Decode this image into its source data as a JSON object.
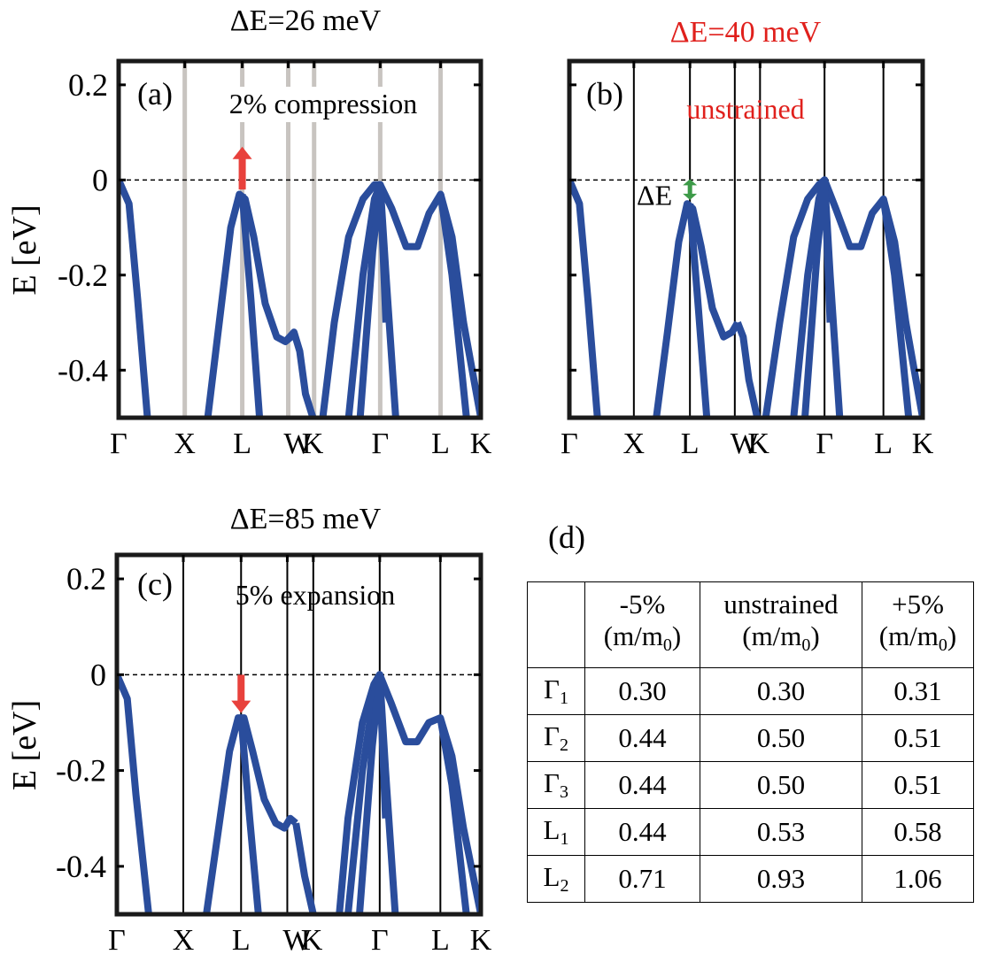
{
  "chart_data": [
    {
      "type": "line",
      "panel": "(a)",
      "title": "ΔE=26 meV",
      "title_color": "#000000",
      "annotation": "2% compression",
      "annotation_color": "#000000",
      "ylabel": "E [eV]",
      "ylim": [
        -0.5,
        0.25
      ],
      "yticks": [
        0.2,
        0,
        -0.2,
        -0.4
      ],
      "yticklabels": [
        "0.2",
        "0",
        "-0.2",
        "-0.4"
      ],
      "show_ytick_labels": true,
      "xlim": [
        0,
        6.3
      ],
      "high_symmetry_points": [
        {
          "label": "Γ",
          "x": 0
        },
        {
          "label": "X",
          "x": 1.15
        },
        {
          "label": "L",
          "x": 2.15
        },
        {
          "label": "W",
          "x": 2.95
        },
        {
          "label": "K",
          "x": 3.4
        },
        {
          "label": "Γ",
          "x": 4.55
        },
        {
          "label": "L",
          "x": 5.6
        },
        {
          "label": "K",
          "x": 6.3
        }
      ],
      "symmetry_line_color": "#c8c4c0",
      "arrow": {
        "direction": "up",
        "x": 2.15,
        "from": -0.02,
        "to": 0.07,
        "color": "#e8413c"
      },
      "series": [
        {
          "name": "band 1",
          "x": [
            0,
            0.18,
            0.33,
            0.5
          ],
          "y": [
            0,
            -0.05,
            -0.25,
            -0.5
          ]
        },
        {
          "name": "band 2",
          "x": [
            1.55,
            1.75,
            1.95,
            2.1,
            2.2,
            2.35,
            2.55,
            2.75,
            2.9,
            3.0
          ],
          "y": [
            -0.5,
            -0.3,
            -0.1,
            -0.03,
            -0.04,
            -0.12,
            -0.26,
            -0.33,
            -0.34,
            -0.33
          ]
        },
        {
          "name": "band 3",
          "x": [
            2.9,
            3.05,
            3.15,
            3.25,
            3.38
          ],
          "y": [
            -0.34,
            -0.32,
            -0.36,
            -0.45,
            -0.5
          ]
        },
        {
          "name": "band 4",
          "x": [
            2.15,
            2.3,
            2.45
          ],
          "y": [
            -0.03,
            -0.25,
            -0.5
          ]
        },
        {
          "name": "band 5",
          "x": [
            3.55,
            3.75,
            4.0,
            4.25,
            4.45,
            4.55,
            4.75,
            5.0,
            5.2,
            5.4,
            5.6,
            5.8,
            6.0,
            6.3
          ],
          "y": [
            -0.5,
            -0.3,
            -0.12,
            -0.04,
            -0.01,
            -0.01,
            -0.06,
            -0.14,
            -0.14,
            -0.07,
            -0.03,
            -0.12,
            -0.3,
            -0.5
          ]
        },
        {
          "name": "band 6",
          "x": [
            4.0,
            4.25,
            4.45,
            4.55,
            4.65,
            4.82
          ],
          "y": [
            -0.5,
            -0.2,
            -0.04,
            -0.01,
            -0.2,
            -0.5
          ]
        },
        {
          "name": "band 7",
          "x": [
            4.2,
            4.42,
            4.55,
            4.65
          ],
          "y": [
            -0.5,
            -0.15,
            -0.01,
            -0.3
          ]
        },
        {
          "name": "band 8",
          "x": [
            5.6,
            5.8,
            6.05
          ],
          "y": [
            -0.03,
            -0.2,
            -0.5
          ]
        }
      ]
    },
    {
      "type": "line",
      "panel": "(b)",
      "title": "ΔE=40 meV",
      "title_color": "#e0201c",
      "annotation": "unstrained",
      "annotation_color": "#e0201c",
      "ylabel": "",
      "ylim": [
        -0.5,
        0.25
      ],
      "yticks": [
        0.2,
        0,
        -0.2,
        -0.4
      ],
      "yticklabels": [
        "0.2",
        "0",
        "-0.2",
        "-0.4"
      ],
      "show_ytick_labels": false,
      "xlim": [
        0,
        6.3
      ],
      "high_symmetry_points": [
        {
          "label": "Γ",
          "x": 0
        },
        {
          "label": "X",
          "x": 1.15
        },
        {
          "label": "L",
          "x": 2.15
        },
        {
          "label": "W",
          "x": 2.95
        },
        {
          "label": "K",
          "x": 3.4
        },
        {
          "label": "Γ",
          "x": 4.55
        },
        {
          "label": "L",
          "x": 5.6
        },
        {
          "label": "K",
          "x": 6.3
        }
      ],
      "symmetry_line_color": "#000000",
      "arrow": {
        "direction": "double",
        "x": 2.15,
        "from": -0.04,
        "to": 0.0,
        "color": "#3d9a48",
        "label": "ΔE"
      },
      "series": [
        {
          "name": "band 1",
          "x": [
            0,
            0.18,
            0.33,
            0.5
          ],
          "y": [
            0,
            -0.05,
            -0.25,
            -0.5
          ]
        },
        {
          "name": "band 2",
          "x": [
            1.55,
            1.75,
            1.95,
            2.1,
            2.2,
            2.35,
            2.55,
            2.75,
            2.9,
            3.0
          ],
          "y": [
            -0.5,
            -0.32,
            -0.13,
            -0.05,
            -0.06,
            -0.14,
            -0.27,
            -0.33,
            -0.32,
            -0.3
          ]
        },
        {
          "name": "band 3",
          "x": [
            3.0,
            3.1,
            3.2,
            3.35
          ],
          "y": [
            -0.3,
            -0.33,
            -0.42,
            -0.5
          ]
        },
        {
          "name": "band 4",
          "x": [
            2.15,
            2.3,
            2.45
          ],
          "y": [
            -0.05,
            -0.27,
            -0.5
          ]
        },
        {
          "name": "band 5",
          "x": [
            3.5,
            3.75,
            4.0,
            4.25,
            4.45,
            4.55,
            4.75,
            5.0,
            5.2,
            5.4,
            5.6,
            5.8,
            6.0,
            6.3
          ],
          "y": [
            -0.5,
            -0.3,
            -0.12,
            -0.04,
            -0.01,
            0.0,
            -0.06,
            -0.14,
            -0.14,
            -0.07,
            -0.04,
            -0.13,
            -0.3,
            -0.5
          ]
        },
        {
          "name": "band 6",
          "x": [
            4.0,
            4.25,
            4.45,
            4.55,
            4.65,
            4.82
          ],
          "y": [
            -0.5,
            -0.2,
            -0.04,
            0.0,
            -0.2,
            -0.5
          ]
        },
        {
          "name": "band 7",
          "x": [
            4.2,
            4.42,
            4.55,
            4.65
          ],
          "y": [
            -0.5,
            -0.15,
            0.0,
            -0.3
          ]
        },
        {
          "name": "band 8",
          "x": [
            5.6,
            5.8,
            6.05
          ],
          "y": [
            -0.04,
            -0.2,
            -0.5
          ]
        }
      ]
    },
    {
      "type": "line",
      "panel": "(c)",
      "title": "ΔE=85 meV",
      "title_color": "#000000",
      "annotation": "5% expansion",
      "annotation_color": "#000000",
      "ylabel": "E [eV]",
      "ylim": [
        -0.5,
        0.25
      ],
      "yticks": [
        0.2,
        0,
        -0.2,
        -0.4
      ],
      "yticklabels": [
        "0.2",
        "0",
        "-0.2",
        "-0.4"
      ],
      "show_ytick_labels": true,
      "xlim": [
        0,
        6.3
      ],
      "high_symmetry_points": [
        {
          "label": "Γ",
          "x": 0
        },
        {
          "label": "X",
          "x": 1.15
        },
        {
          "label": "L",
          "x": 2.15
        },
        {
          "label": "W",
          "x": 2.95
        },
        {
          "label": "K",
          "x": 3.4
        },
        {
          "label": "Γ",
          "x": 4.55
        },
        {
          "label": "L",
          "x": 5.6
        },
        {
          "label": "K",
          "x": 6.3
        }
      ],
      "symmetry_line_color": "#000000",
      "arrow": {
        "direction": "down",
        "x": 2.15,
        "from": 0.0,
        "to": -0.08,
        "color": "#e8413c"
      },
      "series": [
        {
          "name": "band 1",
          "x": [
            0,
            0.18,
            0.33,
            0.55
          ],
          "y": [
            0,
            -0.05,
            -0.25,
            -0.5
          ]
        },
        {
          "name": "band 2",
          "x": [
            1.55,
            1.75,
            1.95,
            2.1,
            2.2,
            2.35,
            2.55,
            2.75,
            2.9,
            3.0,
            3.1
          ],
          "y": [
            -0.5,
            -0.33,
            -0.16,
            -0.09,
            -0.09,
            -0.16,
            -0.26,
            -0.31,
            -0.32,
            -0.3,
            -0.31
          ]
        },
        {
          "name": "band 3",
          "x": [
            3.1,
            3.25,
            3.4
          ],
          "y": [
            -0.31,
            -0.42,
            -0.5
          ]
        },
        {
          "name": "band 4",
          "x": [
            2.15,
            2.3,
            2.45
          ],
          "y": [
            -0.09,
            -0.3,
            -0.5
          ]
        },
        {
          "name": "band 5",
          "x": [
            3.85,
            4.0,
            4.25,
            4.45,
            4.55,
            4.75,
            5.0,
            5.2,
            5.4,
            5.6,
            5.8,
            6.0,
            6.3
          ],
          "y": [
            -0.5,
            -0.3,
            -0.1,
            -0.02,
            0.0,
            -0.06,
            -0.14,
            -0.14,
            -0.1,
            -0.09,
            -0.17,
            -0.32,
            -0.5
          ]
        },
        {
          "name": "band 6",
          "x": [
            4.0,
            4.25,
            4.45,
            4.55,
            4.65,
            4.82
          ],
          "y": [
            -0.5,
            -0.2,
            -0.04,
            0.0,
            -0.2,
            -0.5
          ]
        },
        {
          "name": "band 7",
          "x": [
            4.2,
            4.42,
            4.55,
            4.65
          ],
          "y": [
            -0.5,
            -0.15,
            0.0,
            -0.3
          ]
        },
        {
          "name": "band 8",
          "x": [
            5.6,
            5.8,
            6.05
          ],
          "y": [
            -0.09,
            -0.23,
            -0.5
          ]
        }
      ]
    }
  ],
  "table": {
    "panel_label": "(d)",
    "header": [
      {
        "line1": "",
        "line2": ""
      },
      {
        "line1": "-5%",
        "line2": "(m/m",
        "sub": "0",
        "close": ")"
      },
      {
        "line1": "unstrained",
        "line2": "(m/m",
        "sub": "0",
        "close": ")"
      },
      {
        "line1": "+5%",
        "line2": "(m/m",
        "sub": "0",
        "close": ")"
      }
    ],
    "rows": [
      {
        "sym": "Γ",
        "sub": "1",
        "values": [
          "0.30",
          "0.30",
          "0.31"
        ]
      },
      {
        "sym": "Γ",
        "sub": "2",
        "values": [
          "0.44",
          "0.50",
          "0.51"
        ]
      },
      {
        "sym": "Γ",
        "sub": "3",
        "values": [
          "0.44",
          "0.50",
          "0.51"
        ]
      },
      {
        "sym": "L",
        "sub": "1",
        "values": [
          "0.44",
          "0.53",
          "0.58"
        ]
      },
      {
        "sym": "L",
        "sub": "2",
        "values": [
          "0.71",
          "0.93",
          "1.06"
        ]
      }
    ]
  },
  "colors": {
    "band": "#2a4d9c",
    "zero_line": "#000000",
    "frame": "#1a1a1a"
  }
}
